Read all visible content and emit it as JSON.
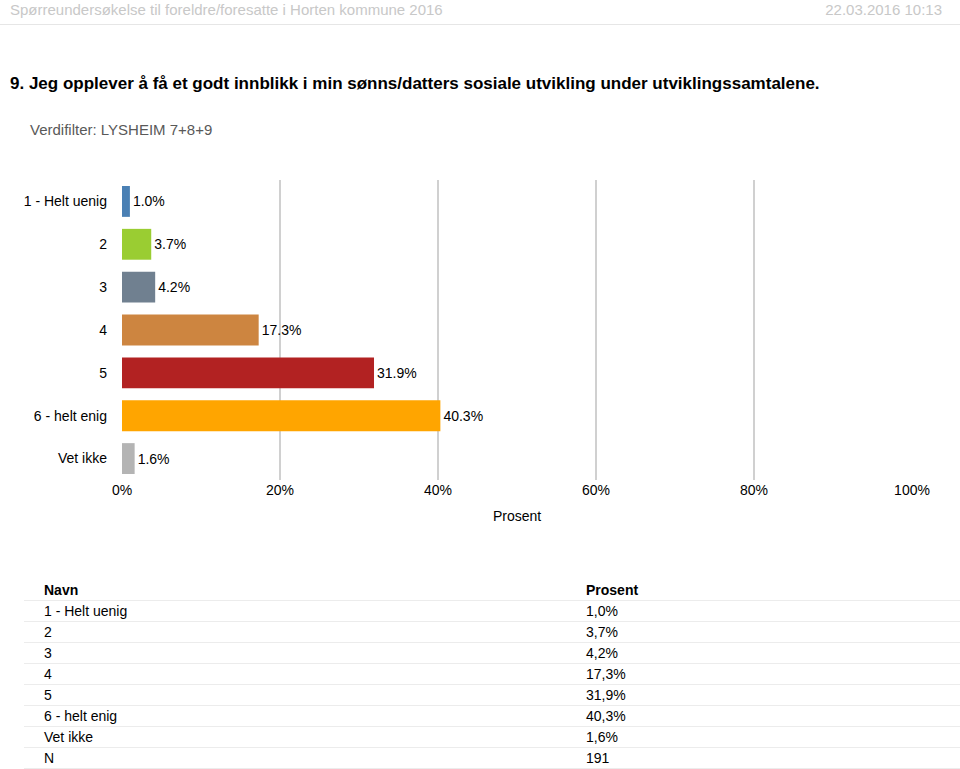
{
  "header": {
    "left": "Spørreundersøkelse til foreldre/foresatte i Horten kommune 2016",
    "right": "22.03.2016 10:13"
  },
  "chart_data": {
    "type": "bar",
    "orientation": "horizontal",
    "title": "9. Jeg opplever å få et godt innblikk i min sønns/datters sosiale utvikling under utviklingssamtalene.",
    "subtitle": "Verdifilter: LYSHEIM 7+8+9",
    "x_label": "Prosent",
    "categories": [
      "1 - Helt uenig",
      "2",
      "3",
      "4",
      "5",
      "6 - helt enig",
      "Vet ikke"
    ],
    "values": [
      1.0,
      3.7,
      4.2,
      17.3,
      31.9,
      40.3,
      1.6
    ],
    "value_labels": [
      "1.0%",
      "3.7%",
      "4.2%",
      "17.3%",
      "31.9%",
      "40.3%",
      "1.6%"
    ],
    "colors": [
      "#4a80b4",
      "#9acd32",
      "#708090",
      "#cd8540",
      "#b22222",
      "#ffa500",
      "#b4b4b4"
    ],
    "data_labels": true,
    "xlim": [
      0,
      100
    ],
    "xticks": [
      {
        "value": 0,
        "label": "0%"
      },
      {
        "value": 20,
        "label": "20%"
      },
      {
        "value": 40,
        "label": "40%"
      },
      {
        "value": 60,
        "label": "60%"
      },
      {
        "value": 80,
        "label": "80%"
      },
      {
        "value": 100,
        "label": "100%"
      }
    ],
    "grid": true
  },
  "table": {
    "columns": [
      "Navn",
      "Prosent"
    ],
    "rows": [
      [
        "1 - Helt uenig",
        "1,0%"
      ],
      [
        "2",
        "3,7%"
      ],
      [
        "3",
        "4,2%"
      ],
      [
        "4",
        "17,3%"
      ],
      [
        "5",
        "31,9%"
      ],
      [
        "6 - helt enig",
        "40,3%"
      ],
      [
        "Vet ikke",
        "1,6%"
      ],
      [
        "N",
        "191"
      ]
    ]
  }
}
